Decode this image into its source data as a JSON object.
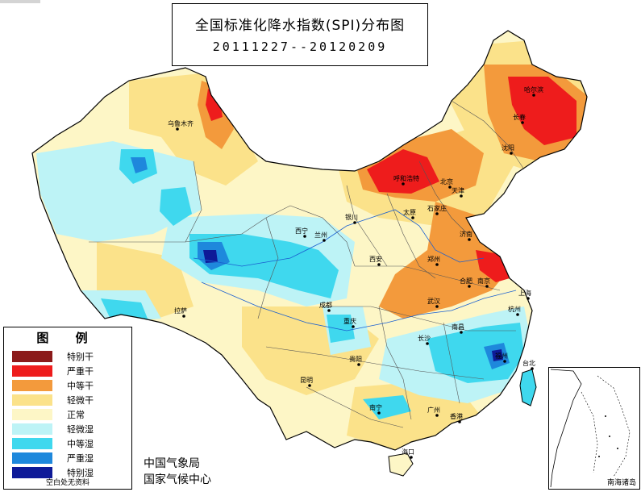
{
  "title": {
    "main": "全国标准化降水指数(SPI)分布图",
    "period": "20111227--20120209"
  },
  "legend": {
    "heading": "图 例",
    "items": [
      {
        "label": "特别干",
        "color": "#8b1a1a"
      },
      {
        "label": "严重干",
        "color": "#ee1c1c"
      },
      {
        "label": "中等干",
        "color": "#f39a3c"
      },
      {
        "label": "轻微干",
        "color": "#fbe28a"
      },
      {
        "label": "正常",
        "color": "#fdf6c6"
      },
      {
        "label": "轻微湿",
        "color": "#bdf3f6"
      },
      {
        "label": "中等湿",
        "color": "#3fd8ee"
      },
      {
        "label": "严重湿",
        "color": "#1e88dc"
      },
      {
        "label": "特别湿",
        "color": "#0e1a98"
      }
    ],
    "footnote": "空白处无资料"
  },
  "agency": {
    "line1": "中国气象局",
    "line2": "国家气候中心"
  },
  "inset": {
    "label": "南海诸岛"
  },
  "cities": [
    {
      "name": "乌鲁木齐",
      "key": "urumqi"
    },
    {
      "name": "拉萨",
      "key": "lhasa"
    },
    {
      "name": "西宁",
      "key": "xining"
    },
    {
      "name": "兰州",
      "key": "lanzhou"
    },
    {
      "name": "银川",
      "key": "yinchuan"
    },
    {
      "name": "呼和浩特",
      "key": "hohhot"
    },
    {
      "name": "太原",
      "key": "taiyuan"
    },
    {
      "name": "石家庄",
      "key": "shijiazhuang"
    },
    {
      "name": "北京",
      "key": "beijing"
    },
    {
      "name": "天津",
      "key": "tianjin"
    },
    {
      "name": "沈阳",
      "key": "shenyang"
    },
    {
      "name": "长春",
      "key": "changchun"
    },
    {
      "name": "哈尔滨",
      "key": "harbin"
    },
    {
      "name": "济南",
      "key": "jinan"
    },
    {
      "name": "郑州",
      "key": "zhengzhou"
    },
    {
      "name": "西安",
      "key": "xian"
    },
    {
      "name": "成都",
      "key": "chengdu"
    },
    {
      "name": "重庆",
      "key": "chongqing"
    },
    {
      "name": "武汉",
      "key": "wuhan"
    },
    {
      "name": "合肥",
      "key": "hefei"
    },
    {
      "name": "南京",
      "key": "nanjing"
    },
    {
      "name": "上海",
      "key": "shanghai"
    },
    {
      "name": "杭州",
      "key": "hangzhou"
    },
    {
      "name": "南昌",
      "key": "nanchang"
    },
    {
      "name": "长沙",
      "key": "changsha"
    },
    {
      "name": "福州",
      "key": "fuzhou"
    },
    {
      "name": "台北",
      "key": "taipei"
    },
    {
      "name": "贵阳",
      "key": "guiyang"
    },
    {
      "name": "昆明",
      "key": "kunming"
    },
    {
      "name": "南宁",
      "key": "nanning"
    },
    {
      "name": "广州",
      "key": "guangzhou"
    },
    {
      "name": "香港",
      "key": "hongkong"
    },
    {
      "name": "海口",
      "key": "haikou"
    }
  ]
}
